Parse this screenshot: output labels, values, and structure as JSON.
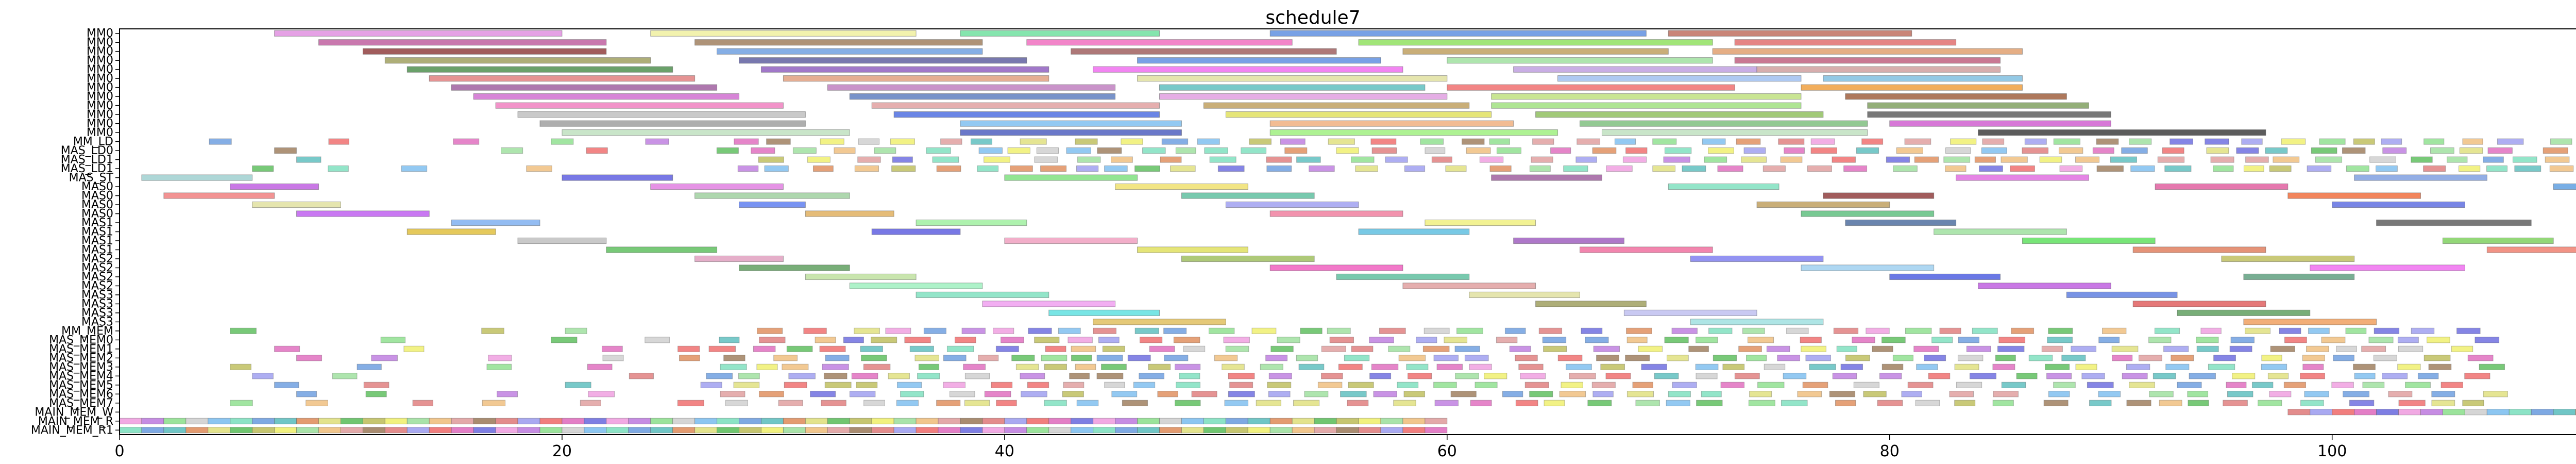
{
  "chart_data": {
    "type": "gantt",
    "title": "schedule7",
    "xlim": [
      0,
      113
    ],
    "x_ticks": [
      0,
      20,
      40,
      60,
      80,
      100
    ],
    "grid": false,
    "legend": "none",
    "rows": [
      "MM0",
      "MM0",
      "MM0",
      "MM0",
      "MM0",
      "MM0",
      "MM0",
      "MM0",
      "MM0",
      "MM0",
      "MM0",
      "MM0",
      "MM_LD",
      "MAS_LD",
      "MAS_LD",
      "MAS_LD",
      "MAS_ST",
      "MAS0",
      "MAS0",
      "MAS0",
      "MAS0",
      "MAS1",
      "MAS1",
      "MAS1",
      "MAS1",
      "MAS2",
      "MAS2",
      "MAS2",
      "MAS2",
      "MAS3",
      "MAS3",
      "MAS3",
      "MAS3",
      "MM_MEM",
      "MAS_MEM0",
      "MAS_MEM1",
      "MAS_MEM2",
      "MAS_MEM3",
      "MAS_MEM4",
      "MAS_MEM5",
      "MAS_MEM6",
      "MAS_MEM7",
      "MAIN_MEM_W",
      "MAIN_MEM_R",
      "MAIN_MEM_R1"
    ],
    "ytick_labels": [
      "MM0",
      "MM0",
      "MM0",
      "MM0",
      "MM0",
      "MM0",
      "MM0",
      "MM0",
      "MM0",
      "MM0",
      "MM0",
      "MM0",
      "MM_LD",
      "MAS_LD0",
      "MAS_LD1",
      "MAS_LD1",
      "MAS_ST",
      "MAS0",
      "MAS0",
      "MAS0",
      "MAS0",
      "MAS1",
      "MAS1",
      "MAS1",
      "MAS1",
      "MAS2",
      "MAS2",
      "MAS2",
      "MAS2",
      "MAS3",
      "MAS3",
      "MAS3",
      "MAS3",
      "MM_MEM",
      "MAS_MEM0",
      "MAS_MEM1",
      "MAS_MEM2",
      "MAS_MEM3",
      "MAS_MEM4",
      "MAS_MEM5",
      "MAS_MEM6",
      "MAS_MEM7",
      "MAIN_MEM_W",
      "MAIN_MEM_R",
      "MAIN_MEM_R1"
    ],
    "tasks": [
      {
        "row": 0,
        "start": 7,
        "end": 20,
        "color": "#e090e0"
      },
      {
        "row": 0,
        "start": 24,
        "end": 36,
        "color": "#f0f0a0"
      },
      {
        "row": 0,
        "start": 38,
        "end": 47,
        "color": "#70e0a0"
      },
      {
        "row": 0,
        "start": 52,
        "end": 69,
        "color": "#6090e0"
      },
      {
        "row": 0,
        "start": 70,
        "end": 81,
        "color": "#c07060"
      },
      {
        "row": 1,
        "start": 9,
        "end": 22,
        "color": "#c060a0"
      },
      {
        "row": 1,
        "start": 26,
        "end": 39,
        "color": "#a08060"
      },
      {
        "row": 1,
        "start": 41,
        "end": 53,
        "color": "#f070c0"
      },
      {
        "row": 1,
        "start": 56,
        "end": 72,
        "color": "#90e060"
      },
      {
        "row": 1,
        "start": 73,
        "end": 83,
        "color": "#e07070"
      },
      {
        "row": 2,
        "start": 11,
        "end": 22,
        "color": "#904040"
      },
      {
        "row": 2,
        "start": 27,
        "end": 39,
        "color": "#70a0e0"
      },
      {
        "row": 2,
        "start": 43,
        "end": 55,
        "color": "#a06060"
      },
      {
        "row": 2,
        "start": 58,
        "end": 70,
        "color": "#c0a060"
      },
      {
        "row": 2,
        "start": 72,
        "end": 86,
        "color": "#e0a070"
      },
      {
        "row": 3,
        "start": 12,
        "end": 24,
        "color": "#a0a060"
      },
      {
        "row": 3,
        "start": 28,
        "end": 41,
        "color": "#6060a0"
      },
      {
        "row": 3,
        "start": 46,
        "end": 57,
        "color": "#6090e0"
      },
      {
        "row": 3,
        "start": 60,
        "end": 72,
        "color": "#a0e0a0"
      },
      {
        "row": 3,
        "start": 73,
        "end": 85,
        "color": "#c06080"
      },
      {
        "row": 4,
        "start": 13,
        "end": 25,
        "color": "#509050"
      },
      {
        "row": 4,
        "start": 29,
        "end": 42,
        "color": "#9060c0"
      },
      {
        "row": 4,
        "start": 44,
        "end": 58,
        "color": "#f070f0"
      },
      {
        "row": 4,
        "start": 63,
        "end": 74,
        "color": "#c0a0e0"
      },
      {
        "row": 4,
        "start": 74,
        "end": 85,
        "color": "#d0a0a0"
      },
      {
        "row": 5,
        "start": 14,
        "end": 26,
        "color": "#e08080"
      },
      {
        "row": 5,
        "start": 30,
        "end": 42,
        "color": "#e0a080"
      },
      {
        "row": 5,
        "start": 46,
        "end": 60,
        "color": "#e0e0a0"
      },
      {
        "row": 5,
        "start": 65,
        "end": 76,
        "color": "#a0c0f0"
      },
      {
        "row": 5,
        "start": 77,
        "end": 86,
        "color": "#80c0e0"
      },
      {
        "row": 6,
        "start": 15,
        "end": 27,
        "color": "#a060a0"
      },
      {
        "row": 6,
        "start": 32,
        "end": 45,
        "color": "#c080c0"
      },
      {
        "row": 6,
        "start": 47,
        "end": 59,
        "color": "#60c0c0"
      },
      {
        "row": 6,
        "start": 60,
        "end": 73,
        "color": "#f07070"
      },
      {
        "row": 6,
        "start": 76,
        "end": 86,
        "color": "#f0a040"
      },
      {
        "row": 7,
        "start": 16,
        "end": 28,
        "color": "#d070d0"
      },
      {
        "row": 7,
        "start": 33,
        "end": 45,
        "color": "#6080c0"
      },
      {
        "row": 7,
        "start": 47,
        "end": 60,
        "color": "#e0a0e0"
      },
      {
        "row": 7,
        "start": 62,
        "end": 76,
        "color": "#c0e080"
      },
      {
        "row": 7,
        "start": 78,
        "end": 88,
        "color": "#a06040"
      },
      {
        "row": 8,
        "start": 17,
        "end": 30,
        "color": "#f080c0"
      },
      {
        "row": 8,
        "start": 34,
        "end": 47,
        "color": "#e0a0a0"
      },
      {
        "row": 8,
        "start": 49,
        "end": 61,
        "color": "#c0a060"
      },
      {
        "row": 8,
        "start": 62,
        "end": 76,
        "color": "#a0e080"
      },
      {
        "row": 8,
        "start": 79,
        "end": 89,
        "color": "#80a060"
      },
      {
        "row": 9,
        "start": 18,
        "end": 31,
        "color": "#c0c0c0"
      },
      {
        "row": 9,
        "start": 35,
        "end": 47,
        "color": "#5070e0"
      },
      {
        "row": 9,
        "start": 50,
        "end": 62,
        "color": "#e0e060"
      },
      {
        "row": 9,
        "start": 64,
        "end": 77,
        "color": "#90c060"
      },
      {
        "row": 9,
        "start": 79,
        "end": 90,
        "color": "#606060"
      },
      {
        "row": 10,
        "start": 19,
        "end": 31,
        "color": "#a0a0a0"
      },
      {
        "row": 10,
        "start": 38,
        "end": 48,
        "color": "#80c0f0"
      },
      {
        "row": 10,
        "start": 52,
        "end": 63,
        "color": "#f0b080"
      },
      {
        "row": 10,
        "start": 66,
        "end": 79,
        "color": "#80c080"
      },
      {
        "row": 10,
        "start": 80,
        "end": 90,
        "color": "#d060d0"
      },
      {
        "row": 11,
        "start": 20,
        "end": 33,
        "color": "#c0e0c0"
      },
      {
        "row": 11,
        "start": 38,
        "end": 48,
        "color": "#5060c0"
      },
      {
        "row": 11,
        "start": 52,
        "end": 65,
        "color": "#a0f080"
      },
      {
        "row": 11,
        "start": 67,
        "end": 79,
        "color": "#c0e0c0"
      },
      {
        "row": 11,
        "start": 84,
        "end": 97,
        "color": "#404040"
      },
      {
        "row": 16,
        "start": 1,
        "end": 6,
        "color": "#a0d0d0"
      },
      {
        "row": 16,
        "start": 20,
        "end": 25,
        "color": "#6060e0"
      },
      {
        "row": 16,
        "start": 40,
        "end": 46,
        "color": "#80e080"
      },
      {
        "row": 16,
        "start": 62,
        "end": 67,
        "color": "#a060a0"
      },
      {
        "row": 16,
        "start": 83,
        "end": 89,
        "color": "#e070e0"
      },
      {
        "row": 16,
        "start": 101,
        "end": 107,
        "color": "#80a0e0"
      },
      {
        "row": 17,
        "start": 5,
        "end": 9,
        "color": "#c060e0"
      },
      {
        "row": 17,
        "start": 24,
        "end": 30,
        "color": "#e080e0"
      },
      {
        "row": 17,
        "start": 45,
        "end": 51,
        "color": "#f0e070"
      },
      {
        "row": 17,
        "start": 70,
        "end": 75,
        "color": "#80e0c0"
      },
      {
        "row": 17,
        "start": 92,
        "end": 98,
        "color": "#e060a0"
      },
      {
        "row": 17,
        "start": 110,
        "end": 113,
        "color": "#60a0e0"
      },
      {
        "row": 18,
        "start": 2,
        "end": 7,
        "color": "#f08080"
      },
      {
        "row": 18,
        "start": 26,
        "end": 33,
        "color": "#a0d0a0"
      },
      {
        "row": 18,
        "start": 48,
        "end": 54,
        "color": "#60c0a0"
      },
      {
        "row": 18,
        "start": 77,
        "end": 82,
        "color": "#904040"
      },
      {
        "row": 18,
        "start": 98,
        "end": 104,
        "color": "#f07040"
      },
      {
        "row": 19,
        "start": 6,
        "end": 10,
        "color": "#e0e0a0"
      },
      {
        "row": 19,
        "start": 28,
        "end": 31,
        "color": "#6080f0"
      },
      {
        "row": 19,
        "start": 50,
        "end": 56,
        "color": "#a0a0f0"
      },
      {
        "row": 19,
        "start": 74,
        "end": 80,
        "color": "#c0a060"
      },
      {
        "row": 19,
        "start": 100,
        "end": 106,
        "color": "#6070e0"
      },
      {
        "row": 20,
        "start": 8,
        "end": 14,
        "color": "#c060f0"
      },
      {
        "row": 20,
        "start": 31,
        "end": 35,
        "color": "#e0b060"
      },
      {
        "row": 20,
        "start": 52,
        "end": 58,
        "color": "#f080a0"
      },
      {
        "row": 20,
        "start": 76,
        "end": 82,
        "color": "#60c080"
      },
      {
        "row": 21,
        "start": 15,
        "end": 19,
        "color": "#80b0f0"
      },
      {
        "row": 21,
        "start": 36,
        "end": 41,
        "color": "#a0f0a0"
      },
      {
        "row": 21,
        "start": 59,
        "end": 64,
        "color": "#f0f080"
      },
      {
        "row": 21,
        "start": 78,
        "end": 83,
        "color": "#5070a0"
      },
      {
        "row": 21,
        "start": 102,
        "end": 109,
        "color": "#606060"
      },
      {
        "row": 22,
        "start": 13,
        "end": 17,
        "color": "#e0c040"
      },
      {
        "row": 22,
        "start": 34,
        "end": 38,
        "color": "#6060e0"
      },
      {
        "row": 22,
        "start": 56,
        "end": 61,
        "color": "#60c0e0"
      },
      {
        "row": 22,
        "start": 82,
        "end": 88,
        "color": "#a0e0a0"
      },
      {
        "row": 23,
        "start": 18,
        "end": 22,
        "color": "#c0c0c0"
      },
      {
        "row": 23,
        "start": 40,
        "end": 46,
        "color": "#f0a0c0"
      },
      {
        "row": 23,
        "start": 63,
        "end": 68,
        "color": "#a060c0"
      },
      {
        "row": 23,
        "start": 86,
        "end": 92,
        "color": "#60e060"
      },
      {
        "row": 23,
        "start": 105,
        "end": 110,
        "color": "#80d060"
      },
      {
        "row": 24,
        "start": 22,
        "end": 27,
        "color": "#60c060"
      },
      {
        "row": 24,
        "start": 46,
        "end": 51,
        "color": "#e0e060"
      },
      {
        "row": 24,
        "start": 66,
        "end": 72,
        "color": "#f070a0"
      },
      {
        "row": 24,
        "start": 91,
        "end": 97,
        "color": "#e08060"
      },
      {
        "row": 24,
        "start": 107,
        "end": 112,
        "color": "#f08070"
      },
      {
        "row": 25,
        "start": 26,
        "end": 30,
        "color": "#e0a0c0"
      },
      {
        "row": 25,
        "start": 48,
        "end": 54,
        "color": "#a0c060"
      },
      {
        "row": 25,
        "start": 71,
        "end": 77,
        "color": "#8080f0"
      },
      {
        "row": 25,
        "start": 95,
        "end": 101,
        "color": "#c0c060"
      },
      {
        "row": 26,
        "start": 28,
        "end": 33,
        "color": "#60a060"
      },
      {
        "row": 26,
        "start": 52,
        "end": 58,
        "color": "#f060c0"
      },
      {
        "row": 26,
        "start": 76,
        "end": 82,
        "color": "#a0d0f0"
      },
      {
        "row": 26,
        "start": 99,
        "end": 106,
        "color": "#f070f0"
      },
      {
        "row": 27,
        "start": 31,
        "end": 36,
        "color": "#c0e0a0"
      },
      {
        "row": 27,
        "start": 55,
        "end": 61,
        "color": "#60c0a0"
      },
      {
        "row": 27,
        "start": 80,
        "end": 85,
        "color": "#5060e0"
      },
      {
        "row": 27,
        "start": 96,
        "end": 101,
        "color": "#60a080"
      },
      {
        "row": 28,
        "start": 33,
        "end": 39,
        "color": "#a0f0c0"
      },
      {
        "row": 28,
        "start": 58,
        "end": 64,
        "color": "#e0a0a0"
      },
      {
        "row": 28,
        "start": 84,
        "end": 90,
        "color": "#c060e0"
      },
      {
        "row": 29,
        "start": 36,
        "end": 42,
        "color": "#80e0c0"
      },
      {
        "row": 29,
        "start": 61,
        "end": 66,
        "color": "#e0e0a0"
      },
      {
        "row": 29,
        "start": 88,
        "end": 93,
        "color": "#6080e0"
      },
      {
        "row": 30,
        "start": 39,
        "end": 45,
        "color": "#f0a0f0"
      },
      {
        "row": 30,
        "start": 64,
        "end": 69,
        "color": "#a0a060"
      },
      {
        "row": 30,
        "start": 91,
        "end": 97,
        "color": "#e06060"
      },
      {
        "row": 31,
        "start": 42,
        "end": 47,
        "color": "#60e0e0"
      },
      {
        "row": 31,
        "start": 68,
        "end": 74,
        "color": "#c0c0f0"
      },
      {
        "row": 31,
        "start": 93,
        "end": 99,
        "color": "#60a060"
      },
      {
        "row": 32,
        "start": 44,
        "end": 50,
        "color": "#e0c060"
      },
      {
        "row": 32,
        "start": 71,
        "end": 77,
        "color": "#a0e0e0"
      },
      {
        "row": 32,
        "start": 96,
        "end": 102,
        "color": "#f0a060"
      }
    ],
    "strip_colors": [
      "#e08080",
      "#80c0f0",
      "#a0e0a0",
      "#f0a0e0",
      "#e0e080",
      "#a0a0f0",
      "#80e0c0",
      "#f0c080",
      "#c080e0",
      "#60c060",
      "#f07070",
      "#70a0e0",
      "#e0a0a0",
      "#90e090",
      "#c0c060",
      "#e070c0",
      "#60c0c0",
      "#a08060",
      "#d0d0d0",
      "#f0f070",
      "#7070e0",
      "#e09060"
    ],
    "strip_rows": [
      12,
      13,
      14,
      15,
      33,
      34,
      35,
      36,
      37,
      38,
      39,
      40,
      41
    ],
    "main_mem_rows": [
      42,
      43,
      44
    ],
    "main_mem_ranges": [
      [
        98,
        113
      ],
      [
        0,
        60
      ],
      [
        0,
        60
      ]
    ]
  }
}
